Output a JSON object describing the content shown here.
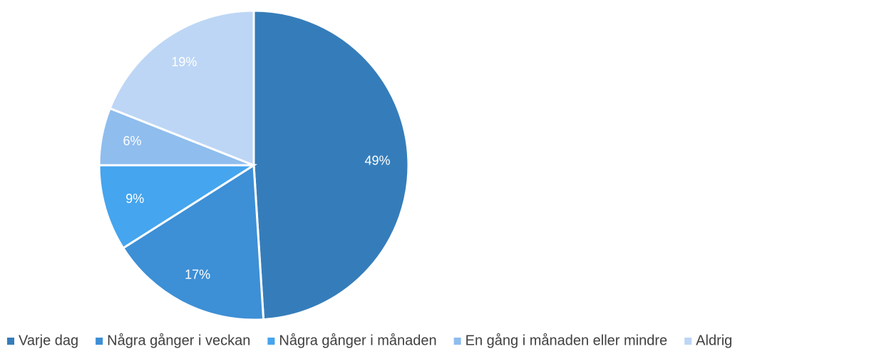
{
  "chart_data": {
    "type": "pie",
    "categories": [
      "Varje dag",
      "Några gånger i veckan",
      "Några gånger i månaden",
      "En gång i månaden eller mindre",
      "Aldrig"
    ],
    "values": [
      49,
      17,
      9,
      6,
      19
    ],
    "value_labels": [
      "49%",
      "17%",
      "9%",
      "6%",
      "19%"
    ],
    "colors": [
      "#357dba",
      "#3d8fd6",
      "#45a5ee",
      "#8fbdee",
      "#bdd6f5"
    ],
    "legend": "bottom"
  }
}
